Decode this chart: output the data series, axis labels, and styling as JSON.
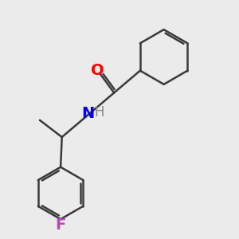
{
  "background_color": "#ebebeb",
  "bond_color": "#3a3a3a",
  "o_color": "#ff0000",
  "n_color": "#0000ee",
  "f_color": "#bb44bb",
  "h_color": "#888888",
  "line_width": 1.8,
  "figsize": [
    3.0,
    3.0
  ],
  "dpi": 100,
  "xlim": [
    -2.5,
    4.5
  ],
  "ylim": [
    -4.5,
    4.5
  ]
}
